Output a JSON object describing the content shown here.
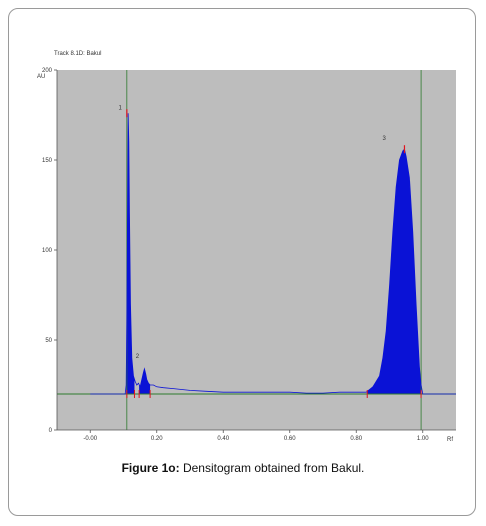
{
  "figure": {
    "label": "Figure 1o:",
    "caption": "Densitogram obtained from Bakul."
  },
  "chart_data": {
    "type": "line",
    "title": "Track 8.1D: Bakul",
    "xlabel": "Rf",
    "ylabel": "AU",
    "xlim": [
      -0.1,
      1.1
    ],
    "ylim": [
      0,
      200
    ],
    "x_ticks": [
      "-0.00",
      "0.20",
      "0.40",
      "0.60",
      "0.80",
      "1.00"
    ],
    "y_ticks": [
      "0",
      "50",
      "100",
      "150",
      "200"
    ],
    "baseline": 20,
    "peak_labels": [
      {
        "text": "1",
        "x": 0.09,
        "y": 178
      },
      {
        "text": "2",
        "x": 0.142,
        "y": 40
      },
      {
        "text": "3",
        "x": 0.884,
        "y": 161
      }
    ],
    "peak_markers": [
      {
        "x": 0.11,
        "y": 176
      },
      {
        "x": 0.945,
        "y": 156
      }
    ],
    "boundary_markers": [
      0.11,
      0.133,
      0.147,
      0.18,
      0.833,
      0.995
    ],
    "vertical_lines": [
      0.11,
      0.995
    ],
    "profile": [
      [
        0.0,
        20
      ],
      [
        0.105,
        20
      ],
      [
        0.108,
        25
      ],
      [
        0.11,
        60
      ],
      [
        0.112,
        120
      ],
      [
        0.114,
        176
      ],
      [
        0.116,
        160
      ],
      [
        0.118,
        120
      ],
      [
        0.121,
        70
      ],
      [
        0.125,
        40
      ],
      [
        0.13,
        30
      ],
      [
        0.135,
        27
      ],
      [
        0.14,
        25
      ],
      [
        0.145,
        26
      ],
      [
        0.15,
        24
      ],
      [
        0.155,
        28
      ],
      [
        0.16,
        32
      ],
      [
        0.163,
        34
      ],
      [
        0.167,
        31
      ],
      [
        0.17,
        28
      ],
      [
        0.175,
        26
      ],
      [
        0.18,
        25
      ],
      [
        0.19,
        25
      ],
      [
        0.2,
        24
      ],
      [
        0.22,
        23.5
      ],
      [
        0.25,
        23
      ],
      [
        0.3,
        22
      ],
      [
        0.35,
        21.5
      ],
      [
        0.4,
        21
      ],
      [
        0.45,
        21
      ],
      [
        0.5,
        21
      ],
      [
        0.55,
        21
      ],
      [
        0.6,
        21
      ],
      [
        0.65,
        20.5
      ],
      [
        0.7,
        20.5
      ],
      [
        0.75,
        21
      ],
      [
        0.8,
        21
      ],
      [
        0.83,
        21
      ],
      [
        0.85,
        24
      ],
      [
        0.87,
        30
      ],
      [
        0.88,
        40
      ],
      [
        0.89,
        55
      ],
      [
        0.9,
        80
      ],
      [
        0.91,
        110
      ],
      [
        0.92,
        135
      ],
      [
        0.93,
        150
      ],
      [
        0.94,
        155
      ],
      [
        0.945,
        156
      ],
      [
        0.95,
        152
      ],
      [
        0.96,
        140
      ],
      [
        0.97,
        110
      ],
      [
        0.98,
        70
      ],
      [
        0.99,
        35
      ],
      [
        0.995,
        25
      ],
      [
        1.0,
        20
      ],
      [
        1.1,
        20
      ]
    ],
    "fill_regions": [
      [
        0.108,
        0.133
      ],
      [
        0.147,
        0.18
      ],
      [
        0.833,
        0.995
      ]
    ],
    "colors": {
      "plot_background": "#bdbdbd",
      "trace": "#0a12d6",
      "baseline": "#2d7a2d",
      "vertical": "#2d7a2d",
      "markers": "#e0141e"
    }
  }
}
